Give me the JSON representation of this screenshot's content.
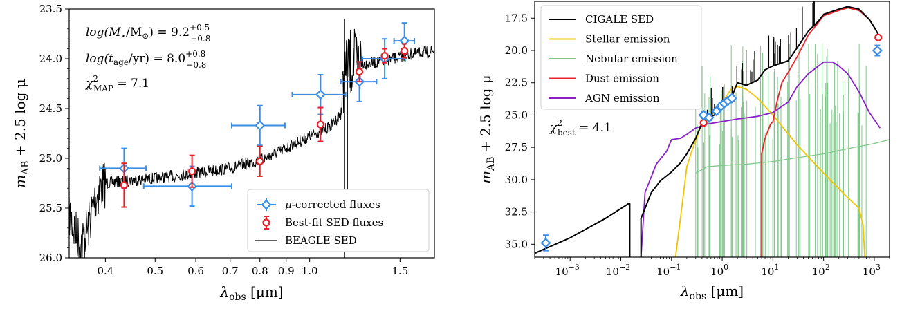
{
  "chart_data": [
    {
      "type": "scatter",
      "title": "",
      "xlabel_main": "λ",
      "xlabel_sub": "obs",
      "xlabel_unit": " [μm]",
      "ylabel_main": "m",
      "ylabel_sub": "AB",
      "ylabel_rest": " + 2.5 log μ",
      "x_scale": "log",
      "xlim": [
        0.34,
        1.75
      ],
      "ylim": [
        26.0,
        23.5
      ],
      "y_inverted": true,
      "x_ticks": [
        0.4,
        0.5,
        0.6,
        0.7,
        0.8,
        0.9,
        1.0,
        1.5
      ],
      "x_tick_labels": [
        "0.4",
        "0.5",
        "0.6",
        "0.7",
        "0.8",
        "0.9",
        "1.0",
        "1.5"
      ],
      "y_ticks": [
        23.5,
        24.0,
        24.5,
        25.0,
        25.5,
        26.0
      ],
      "y_tick_labels": [
        "23.5",
        "24.0",
        "24.5",
        "25.0",
        "25.5",
        "26.0"
      ],
      "annotations": [
        {
          "main": "log(M",
          "sub": "⋆",
          "rest": "/M",
          "sub2": "⊙",
          "rest2": ") = 9.2",
          "sup": "+0.5",
          "sub3": "−0.8"
        },
        {
          "main": "log(t",
          "sub": "age",
          "rest": "/yr) = 8.0",
          "sup": "+0.8",
          "sub3": "−0.8"
        },
        {
          "main": "χ",
          "sup": "2",
          "sub": "MAP",
          "rest": " = 7.1"
        }
      ],
      "legend_position": "lower-right",
      "legend": [
        {
          "label_pre": "μ",
          "label_post": "-corrected fluxes",
          "color": "#3a8ee6",
          "marker": "diamond"
        },
        {
          "label_pre": "",
          "label_post": "Best-fit SED fluxes",
          "color": "#e8202a",
          "marker": "circle"
        },
        {
          "label_pre": "",
          "label_post": "BEAGLE SED",
          "color": "#000000",
          "marker": "line"
        }
      ],
      "observed_fluxes": [
        {
          "x": 0.435,
          "xerr": [
            0.045,
            0.045
          ],
          "y": 25.1,
          "yerr": 0.2
        },
        {
          "x": 0.59,
          "xerr": [
            0.115,
            0.115
          ],
          "y": 25.28,
          "yerr": 0.2
        },
        {
          "x": 0.8,
          "xerr": [
            0.095,
            0.095
          ],
          "y": 24.67,
          "yerr": 0.2
        },
        {
          "x": 1.05,
          "xerr": [
            0.125,
            0.125
          ],
          "y": 24.36,
          "yerr": 0.2
        },
        {
          "x": 1.25,
          "xerr": [
            0.1,
            0.1
          ],
          "y": 24.23,
          "yerr": 0.2
        },
        {
          "x": 1.4,
          "xerr": [
            0.135,
            0.135
          ],
          "y": 24.0,
          "yerr": 0.2
        },
        {
          "x": 1.53,
          "xerr": [
            0.07,
            0.07
          ],
          "y": 23.82,
          "yerr": 0.18
        }
      ],
      "bestfit_fluxes": [
        {
          "x": 0.435,
          "y": 25.27,
          "yerr": 0.22
        },
        {
          "x": 0.59,
          "y": 25.13,
          "yerr": 0.16
        },
        {
          "x": 0.8,
          "y": 25.03,
          "yerr": 0.15
        },
        {
          "x": 1.05,
          "y": 24.66,
          "yerr": 0.17
        },
        {
          "x": 1.25,
          "y": 24.13,
          "yerr": 0.1
        },
        {
          "x": 1.4,
          "y": 23.97,
          "yerr": 0.07
        },
        {
          "x": 1.53,
          "y": 23.92,
          "yerr": 0.07
        }
      ],
      "beagle_sed": {
        "x": [
          0.34,
          0.35,
          0.36,
          0.37,
          0.38,
          0.39,
          0.4,
          0.45,
          0.5,
          0.6,
          0.7,
          0.8,
          0.9,
          1.0,
          1.1,
          1.15,
          1.17,
          1.2,
          1.3,
          1.4,
          1.5,
          1.6,
          1.75
        ],
        "y": [
          25.55,
          25.75,
          25.85,
          25.7,
          25.45,
          25.3,
          25.25,
          25.22,
          25.2,
          25.15,
          25.1,
          25.02,
          24.9,
          24.78,
          24.68,
          24.55,
          24.2,
          24.05,
          24.05,
          24.02,
          23.98,
          23.95,
          23.92
        ]
      }
    },
    {
      "type": "line",
      "title": "",
      "xlabel_main": "λ",
      "xlabel_sub": "obs",
      "xlabel_unit": " [μm]",
      "ylabel_main": "m",
      "ylabel_sub": "AB",
      "ylabel_rest": " + 2.5 log μ",
      "x_scale": "log",
      "xlim": [
        0.0002,
        2000
      ],
      "ylim": [
        36.0,
        16.2
      ],
      "y_inverted": true,
      "x_ticks": [
        0.001,
        0.01,
        0.1,
        1,
        10,
        100,
        1000
      ],
      "x_tick_labels": [
        {
          "b": "10",
          "e": "−3"
        },
        {
          "b": "10",
          "e": "−2"
        },
        {
          "b": "10",
          "e": "−1"
        },
        {
          "b": "10",
          "e": "0"
        },
        {
          "b": "10",
          "e": "1"
        },
        {
          "b": "10",
          "e": "2"
        },
        {
          "b": "10",
          "e": "3"
        }
      ],
      "y_ticks": [
        17.5,
        20.0,
        22.5,
        25.0,
        27.5,
        30.0,
        32.5,
        35.0
      ],
      "y_tick_labels": [
        "17.5",
        "20.0",
        "22.5",
        "25.0",
        "27.5",
        "30.0",
        "32.5",
        "35.0"
      ],
      "annotation": {
        "main": "χ",
        "sup": "2",
        "sub": "best",
        "rest": " = 4.1"
      },
      "legend_position": "upper-left",
      "series": [
        {
          "name": "CIGALE SED",
          "color": "#000000",
          "x": [
            0.0002,
            0.001,
            0.005,
            0.015,
            0.025,
            0.04,
            0.06,
            0.1,
            0.15,
            0.2,
            0.3,
            0.4,
            0.5,
            0.7,
            1.0,
            1.5,
            2,
            3,
            5,
            7,
            10,
            20,
            30,
            50,
            80,
            100,
            200,
            300,
            500,
            800,
            1000,
            1300
          ],
          "y": [
            35.7,
            34.5,
            33.0,
            31.8,
            33.0,
            31.0,
            30.1,
            29.4,
            28.7,
            28.0,
            26.8,
            25.6,
            25.3,
            25.0,
            24.5,
            23.7,
            22.5,
            22.7,
            22.3,
            21.5,
            21.2,
            20.8,
            19.8,
            18.5,
            17.7,
            17.2,
            16.8,
            16.6,
            16.8,
            17.6,
            18.2,
            19.0
          ]
        },
        {
          "name": "Stellar emission",
          "color": "#f2c500",
          "x": [
            0.12,
            0.15,
            0.2,
            0.25,
            0.3,
            0.4,
            0.5,
            0.6,
            0.8,
            1.0,
            1.5,
            2,
            3,
            5,
            10,
            30,
            100,
            300,
            500,
            600,
            650
          ],
          "y": [
            36.0,
            33.0,
            29.0,
            27.8,
            27.0,
            25.6,
            25.2,
            25.0,
            24.5,
            24.0,
            23.0,
            22.8,
            23.0,
            23.7,
            25.0,
            27.3,
            29.5,
            31.4,
            32.2,
            33.5,
            36.0
          ]
        },
        {
          "name": "Nebular emission",
          "color": "#7fc88a",
          "x": [
            0.3,
            0.5,
            1,
            3,
            10,
            30,
            100,
            300,
            1000,
            2000
          ],
          "y": [
            29.5,
            29.0,
            28.9,
            28.8,
            28.6,
            28.3,
            28.0,
            27.6,
            27.2,
            26.9
          ]
        },
        {
          "name": "Dust emission",
          "color": "#e8202a",
          "x": [
            6.0,
            6.0,
            7,
            9,
            10,
            12,
            15,
            20,
            30,
            50,
            80,
            100,
            200,
            300,
            500,
            800,
            1000,
            1300
          ],
          "y": [
            36.0,
            28.0,
            26.8,
            25.7,
            25.5,
            24.0,
            22.5,
            21.7,
            20.5,
            18.8,
            17.8,
            17.3,
            16.9,
            16.7,
            16.9,
            17.6,
            18.2,
            19.0
          ]
        },
        {
          "name": "AGN emission",
          "color": "#8a1fc9",
          "x": [
            0.025,
            0.03,
            0.05,
            0.08,
            0.1,
            0.15,
            0.2,
            0.3,
            0.5,
            1,
            2,
            5,
            10,
            20,
            30,
            50,
            100,
            150,
            200,
            300,
            500,
            800,
            1300
          ],
          "y": [
            36.0,
            31.0,
            28.8,
            27.8,
            26.9,
            26.8,
            26.5,
            26.0,
            25.7,
            25.5,
            25.3,
            25.1,
            24.8,
            24.0,
            22.8,
            21.8,
            20.9,
            20.9,
            21.2,
            21.8,
            23.2,
            24.8,
            26.0
          ]
        }
      ],
      "observed_fluxes": [
        {
          "x": 0.00033,
          "y": 34.9,
          "yerr": 0.6
        },
        {
          "x": 0.43,
          "y": 25.0,
          "yerr": 0.25
        },
        {
          "x": 0.55,
          "y": 25.2,
          "yerr": 0.2
        },
        {
          "x": 0.77,
          "y": 24.7,
          "yerr": 0.2
        },
        {
          "x": 0.95,
          "y": 24.3,
          "yerr": 0.2
        },
        {
          "x": 1.1,
          "y": 24.1,
          "yerr": 0.2
        },
        {
          "x": 1.3,
          "y": 23.9,
          "yerr": 0.2
        },
        {
          "x": 1.55,
          "y": 23.7,
          "yerr": 0.2
        },
        {
          "x": 1150,
          "y": 20.0,
          "yerr": 0.4
        }
      ],
      "bestfit_fluxes": [
        {
          "x": 0.43,
          "y": 25.6
        },
        {
          "x": 1200,
          "y": 19.0
        }
      ]
    }
  ]
}
